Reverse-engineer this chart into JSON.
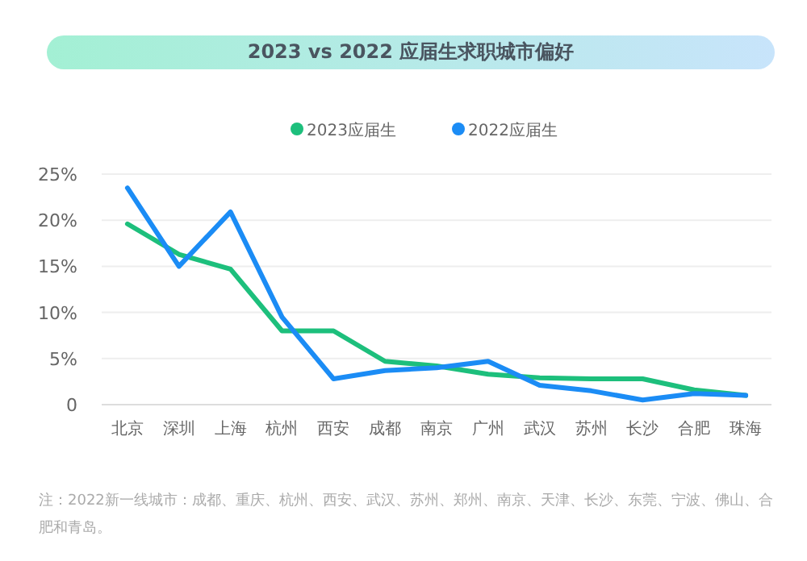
{
  "chart_data": {
    "type": "line",
    "title": "2023 vs 2022 应届生求职城市偏好",
    "categories": [
      "北京",
      "深圳",
      "上海",
      "杭州",
      "西安",
      "成都",
      "南京",
      "广州",
      "武汉",
      "苏州",
      "长沙",
      "合肥",
      "珠海"
    ],
    "series": [
      {
        "name": "2023应届生",
        "color": "#1dbf7c",
        "values": [
          19.6,
          16.3,
          14.7,
          8,
          8,
          4.7,
          4.2,
          3.3,
          2.9,
          2.8,
          2.8,
          1.6,
          1
        ]
      },
      {
        "name": "2022应届生",
        "color": "#1b8cf5",
        "values": [
          23.5,
          15,
          20.9,
          9.5,
          2.8,
          3.7,
          4,
          4.7,
          2.1,
          1.5,
          0.5,
          1.2,
          1
        ]
      }
    ],
    "ylim": [
      0,
      25
    ],
    "yticks": [
      0,
      {
        "value": 5,
        "label": "5%"
      },
      {
        "value": 10,
        "label": "10%"
      },
      {
        "value": 15,
        "label": "15%"
      },
      {
        "value": 20,
        "label": "20%"
      },
      {
        "value": 25,
        "label": "25%"
      }
    ],
    "grid": "y",
    "legend": "top",
    "marker": "none",
    "line_style": "solid",
    "annotations": [
      "注：2022新一线城市：成都、重庆、杭州、西安、武汉、苏州、郑州、南京、天津、长沙、东莞、宁波、佛山、合肥和青岛。"
    ]
  }
}
